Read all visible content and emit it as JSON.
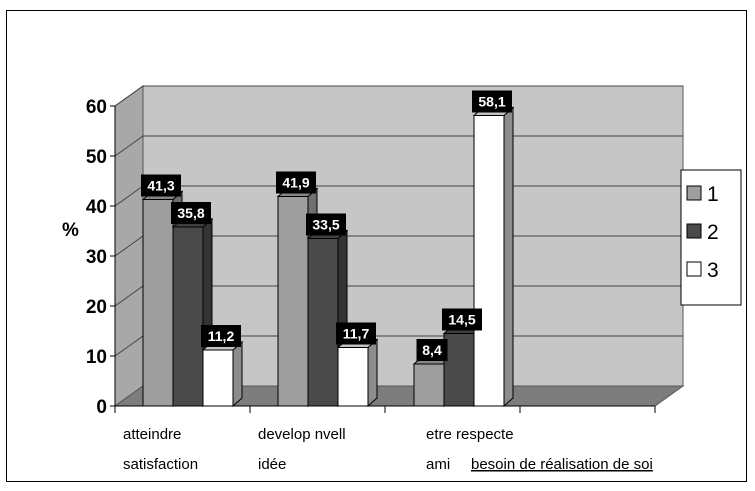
{
  "chart_data": {
    "type": "bar",
    "ylabel": "%",
    "ylim": [
      0,
      60
    ],
    "yticks": [
      0,
      10,
      20,
      30,
      40,
      50,
      60
    ],
    "grid": true,
    "legend_position": "right",
    "categories": [
      [
        "atteindre",
        "satisfaction"
      ],
      [
        "develop nvell",
        "idée"
      ],
      [
        "etre respecte",
        "ami"
      ]
    ],
    "extra_category_label": "besoin de réalisation de soi",
    "series": [
      {
        "name": "1",
        "values": [
          41.3,
          41.9,
          8.4
        ],
        "labels": [
          "41,3",
          "41,9",
          "8,4"
        ]
      },
      {
        "name": "2",
        "values": [
          35.8,
          33.5,
          14.5
        ],
        "labels": [
          "35,8",
          "33,5",
          "14,5"
        ]
      },
      {
        "name": "3",
        "values": [
          11.2,
          11.7,
          58.1
        ],
        "labels": [
          "11,2",
          "11,7",
          "58,1"
        ]
      }
    ],
    "colors": {
      "series": [
        "#9e9e9e",
        "#4a4a4a",
        "#ffffff"
      ],
      "wall": "#c6c6c6",
      "floor": "#7d7d7d",
      "label_bg": "#000000"
    }
  }
}
